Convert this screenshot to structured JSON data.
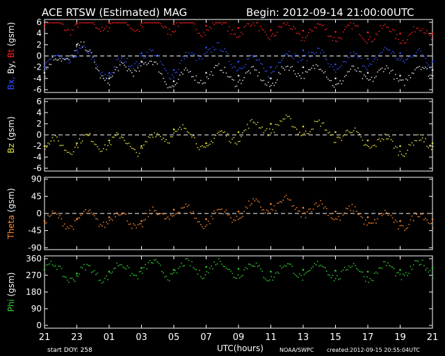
{
  "header": {
    "title": "ACE RTSW (Estimated) MAG",
    "begin": "Begin: 2012-09-14 21:00:00UTC"
  },
  "footer": {
    "start_doy": "start DOY:  258",
    "utc_label": "UTC(hours)",
    "source": "NOAA/SWPC",
    "created": "created:2012-09-15 20:55:04UTC"
  },
  "colors": {
    "bt": "#ff2020",
    "by": "#e0e0e0",
    "bx": "#3050ff",
    "bz": "#e8e040",
    "theta": "#ff8a30",
    "phi": "#30d030",
    "axis": "#ffffff",
    "background": "#000000"
  },
  "chart_data": [
    {
      "type": "scatter",
      "panel": "B",
      "ylabel_parts": [
        {
          "text": "Bx,",
          "color": "#3050ff"
        },
        {
          "text": " By,",
          "color": "#ffffff"
        },
        {
          "text": " Bt",
          "color": "#ff2020"
        },
        {
          "text": "  (gsm)",
          "color": "#ffffff"
        }
      ],
      "ylim": [
        -6.5,
        6.5
      ],
      "yticks": [
        6,
        4,
        2,
        0,
        -2,
        -4,
        -6
      ],
      "zero_line": true,
      "series": [
        {
          "name": "Bt",
          "color": "#ff2020",
          "x": [
            0,
            2,
            4,
            6,
            8,
            10,
            12,
            14,
            16,
            18,
            20,
            22,
            24
          ],
          "y": [
            5.5,
            5.8,
            5.9,
            5.9,
            5.7,
            5.4,
            5.0,
            4.6,
            4.5,
            4.3,
            4.2,
            4.0,
            4.0
          ]
        },
        {
          "name": "Bx",
          "color": "#3050ff",
          "x": [
            0,
            2,
            4,
            6,
            8,
            10,
            12,
            14,
            16,
            18,
            20,
            22,
            24
          ],
          "y": [
            -2.0,
            1.0,
            -3.0,
            0.5,
            -2.5,
            1.5,
            -1.0,
            -2.0,
            1.0,
            -1.5,
            -0.5,
            0.5,
            -1.0
          ]
        },
        {
          "name": "By",
          "color": "#e0e0e0",
          "x": [
            0,
            2,
            4,
            6,
            8,
            10,
            12,
            14,
            16,
            18,
            20,
            22,
            24
          ],
          "y": [
            -3.0,
            2.0,
            -4.0,
            -1.0,
            -4.5,
            -3.0,
            -3.5,
            -4.0,
            -2.0,
            -4.0,
            -3.0,
            -3.5,
            -2.5
          ]
        }
      ]
    },
    {
      "type": "scatter",
      "panel": "Bz",
      "ylabel_parts": [
        {
          "text": "Bz",
          "color": "#e8e040"
        },
        {
          "text": "  (gsm)",
          "color": "#ffffff"
        }
      ],
      "ylim": [
        -6.5,
        6.5
      ],
      "yticks": [
        6,
        4,
        2,
        0,
        -2,
        -4,
        -6
      ],
      "zero_line": true,
      "series": [
        {
          "name": "Bz",
          "color": "#e8e040",
          "x": [
            0,
            2,
            4,
            6,
            8,
            10,
            12,
            14,
            16,
            18,
            20,
            22,
            24
          ],
          "y": [
            -2.0,
            -1.5,
            -1.0,
            -2.0,
            1.0,
            -1.5,
            0.5,
            2.0,
            1.5,
            0.5,
            -1.0,
            -2.0,
            -1.5
          ]
        }
      ]
    },
    {
      "type": "scatter",
      "panel": "Theta",
      "ylabel_parts": [
        {
          "text": "Theta",
          "color": "#ff8a30"
        },
        {
          "text": "  (gsm)",
          "color": "#ffffff"
        }
      ],
      "ylim": [
        -95,
        95
      ],
      "yticks": [
        90,
        45,
        0,
        -45,
        -90
      ],
      "zero_line": true,
      "series": [
        {
          "name": "Theta",
          "color": "#ff8a30",
          "x": [
            0,
            2,
            4,
            6,
            8,
            10,
            12,
            14,
            16,
            18,
            20,
            22,
            24
          ],
          "y": [
            -20,
            -15,
            -10,
            -20,
            10,
            -15,
            5,
            25,
            15,
            5,
            -10,
            -20,
            -15
          ]
        }
      ]
    },
    {
      "type": "scatter",
      "panel": "Phi",
      "ylabel_parts": [
        {
          "text": "Phi",
          "color": "#30d030"
        },
        {
          "text": "  (gsm)",
          "color": "#ffffff"
        }
      ],
      "ylim": [
        -15,
        375
      ],
      "yticks": [
        360,
        270,
        180,
        90,
        0
      ],
      "zero_line": false,
      "series": [
        {
          "name": "Phi",
          "color": "#30d030",
          "x": [
            0,
            2,
            4,
            6,
            8,
            10,
            12,
            14,
            16,
            18,
            20,
            22,
            24
          ],
          "y": [
            300,
            280,
            290,
            310,
            300,
            315,
            305,
            290,
            300,
            295,
            290,
            300,
            310
          ]
        }
      ]
    }
  ],
  "x_axis": {
    "xlim": [
      0,
      24
    ],
    "tick_values": [
      0,
      2,
      4,
      6,
      8,
      10,
      12,
      14,
      16,
      18,
      20,
      22,
      24
    ],
    "tick_labels": [
      "21",
      "23",
      "01",
      "03",
      "05",
      "07",
      "09",
      "11",
      "13",
      "15",
      "17",
      "19",
      "21"
    ]
  }
}
